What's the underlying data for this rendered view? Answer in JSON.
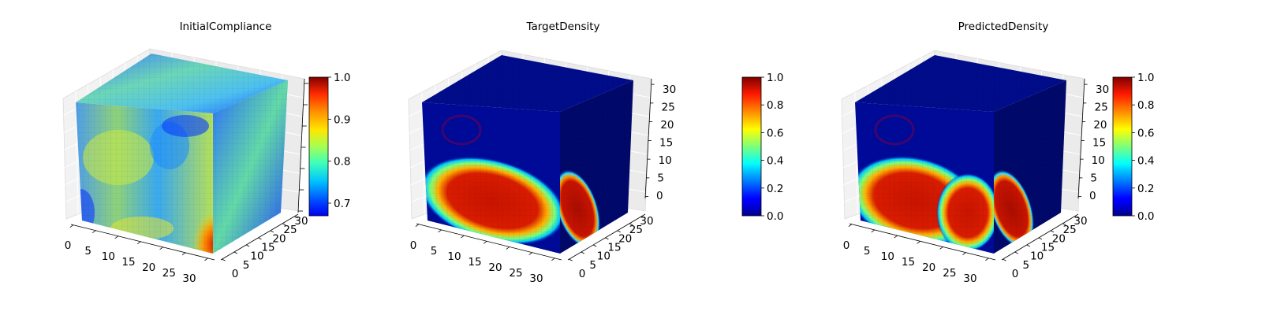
{
  "chart_data": [
    {
      "type": "voxel-3d",
      "title": "InitialCompliance",
      "x_ticks": [
        "0",
        "5",
        "10",
        "15",
        "20",
        "25",
        "30"
      ],
      "y_ticks": [
        "0",
        "5",
        "10",
        "15",
        "20",
        "25",
        "30"
      ],
      "z_ticks": [],
      "colormap": "jet",
      "colorbar": {
        "range": [
          0.67,
          1.0
        ],
        "ticks": [
          0.7,
          0.8,
          0.9,
          1.0
        ],
        "tick_labels": [
          "0.7",
          "0.8",
          "0.9",
          "1.0"
        ]
      },
      "grid_size": 32
    },
    {
      "type": "voxel-3d",
      "title": "TargetDensity",
      "x_ticks": [
        "0",
        "5",
        "10",
        "15",
        "20",
        "25",
        "30"
      ],
      "y_ticks": [
        "0",
        "5",
        "10",
        "15",
        "20",
        "25",
        "30"
      ],
      "z_ticks": [
        "0",
        "5",
        "10",
        "15",
        "20",
        "25",
        "30"
      ],
      "colormap": "jet",
      "colorbar": {
        "range": [
          0.0,
          1.0
        ],
        "ticks": [
          0.0,
          0.2,
          0.4,
          0.6,
          0.8,
          1.0
        ],
        "tick_labels": [
          "0.0",
          "0.2",
          "0.4",
          "0.6",
          "0.8",
          "1.0"
        ]
      },
      "grid_size": 32
    },
    {
      "type": "voxel-3d",
      "title": "PredictedDensity",
      "x_ticks": [
        "0",
        "5",
        "10",
        "15",
        "20",
        "25",
        "30"
      ],
      "y_ticks": [
        "0",
        "5",
        "10",
        "15",
        "20",
        "25",
        "30"
      ],
      "z_ticks": [
        "0",
        "5",
        "10",
        "15",
        "20",
        "25",
        "30"
      ],
      "colormap": "jet",
      "colorbar": {
        "range": [
          0.0,
          1.0
        ],
        "ticks": [
          0.0,
          0.2,
          0.4,
          0.6,
          0.8,
          1.0
        ],
        "tick_labels": [
          "0.0",
          "0.2",
          "0.4",
          "0.6",
          "0.8",
          "1.0"
        ]
      },
      "grid_size": 32
    }
  ]
}
